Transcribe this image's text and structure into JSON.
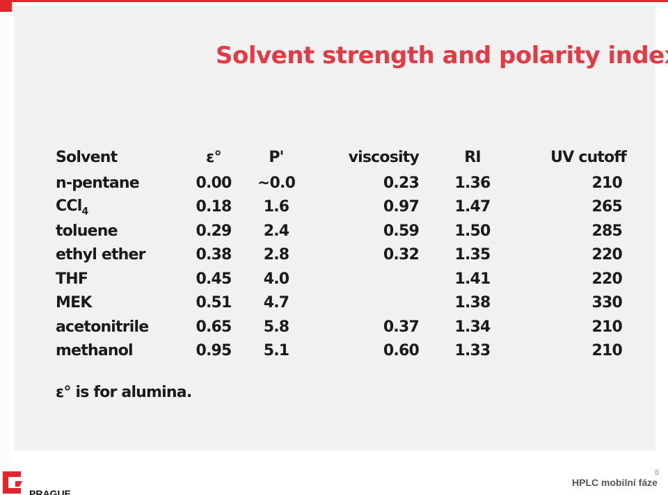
{
  "slide": {
    "title": "Solvent strength and polarity index",
    "table": {
      "headers": {
        "solvent": "Solvent",
        "epsilon": "ε°",
        "p": "P'",
        "viscosity": "viscosity",
        "ri": "RI",
        "uv_cutoff": "UV cutoff"
      },
      "rows": [
        {
          "solvent": "n-pentane",
          "epsilon": "0.00",
          "p": "~0.0",
          "viscosity": "0.23",
          "ri": "1.36",
          "uv_cutoff": "210"
        },
        {
          "solvent": "CCl",
          "solvent_sub": "4",
          "epsilon": "0.18",
          "p": "1.6",
          "viscosity": "0.97",
          "ri": "1.47",
          "uv_cutoff": "265"
        },
        {
          "solvent": "toluene",
          "epsilon": "0.29",
          "p": "2.4",
          "viscosity": "0.59",
          "ri": "1.50",
          "uv_cutoff": "285"
        },
        {
          "solvent": "ethyl ether",
          "epsilon": "0.38",
          "p": "2.8",
          "viscosity": "0.32",
          "ri": "1.35",
          "uv_cutoff": "220"
        },
        {
          "solvent": "THF",
          "epsilon": "0.45",
          "p": "4.0",
          "viscosity": "",
          "ri": "1.41",
          "uv_cutoff": "220"
        },
        {
          "solvent": "MEK",
          "epsilon": "0.51",
          "p": "4.7",
          "viscosity": "",
          "ri": "1.38",
          "uv_cutoff": "330"
        },
        {
          "solvent": "acetonitrile",
          "epsilon": "0.65",
          "p": "5.8",
          "viscosity": "0.37",
          "ri": "1.34",
          "uv_cutoff": "210"
        },
        {
          "solvent": "methanol",
          "epsilon": "0.95",
          "p": "5.1",
          "viscosity": "0.60",
          "ri": "1.33",
          "uv_cutoff": "210"
        }
      ]
    },
    "note": "ε° is for alumina."
  },
  "footer": {
    "page_number": "8",
    "text": "HPLC mobilní fáze",
    "logo_word": "PRAGUE"
  },
  "colors": {
    "accent": "#e3262b",
    "title": "#e13c45",
    "text": "#1a1a1a"
  }
}
